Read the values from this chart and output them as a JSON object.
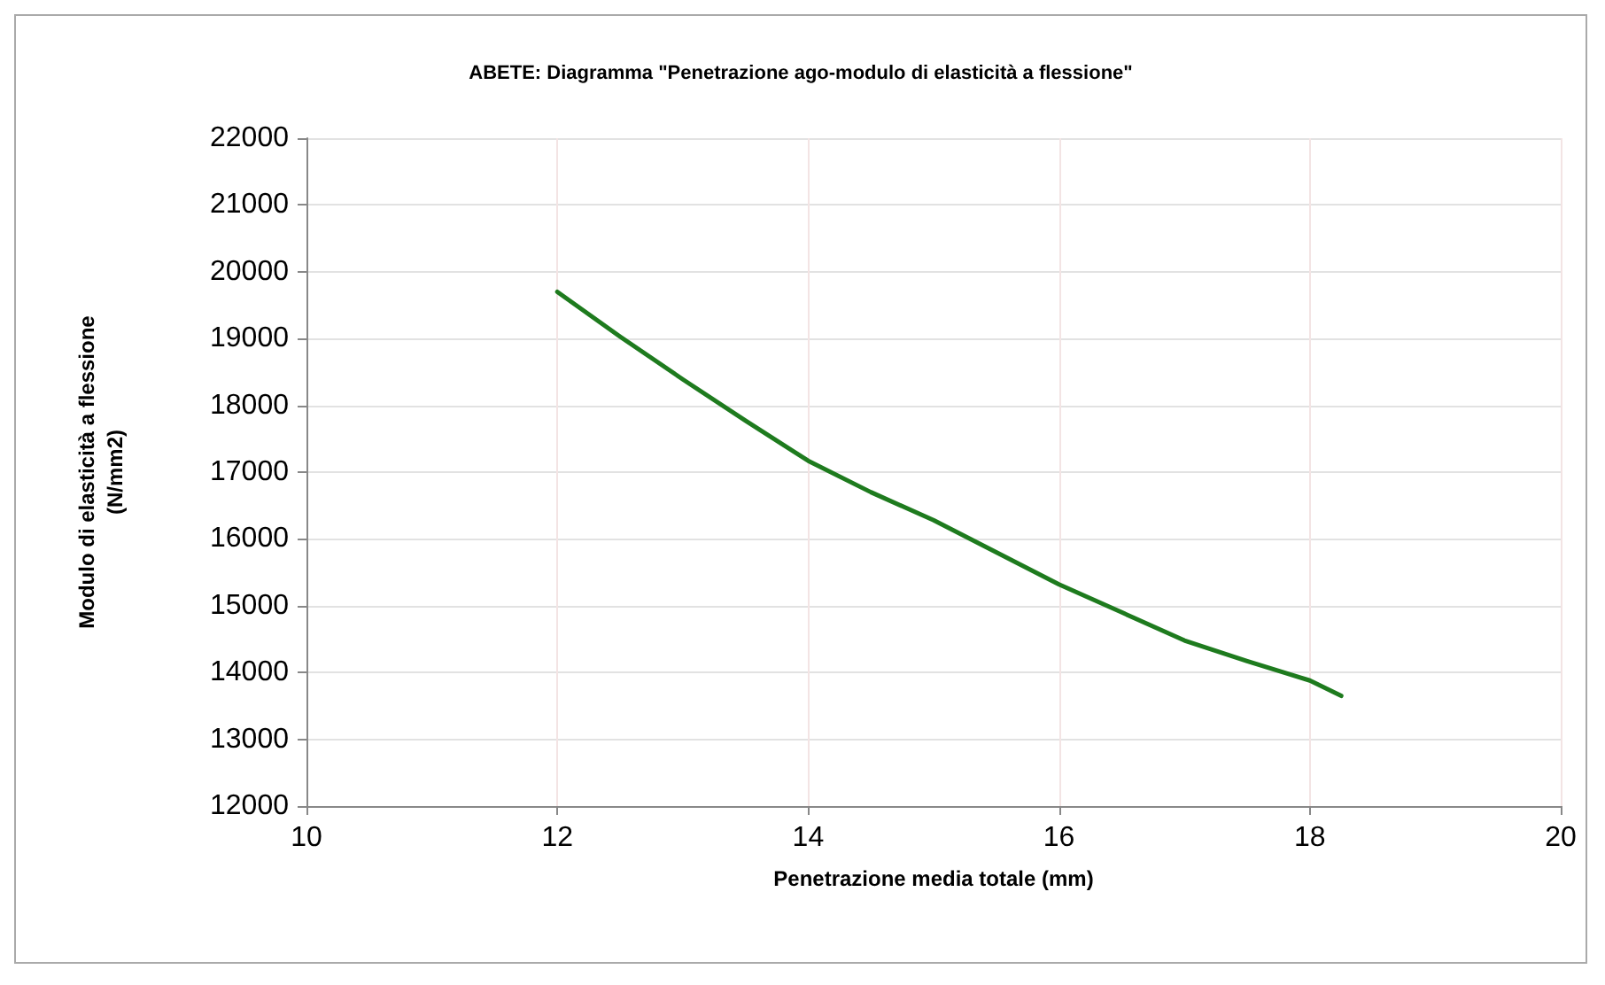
{
  "chart_data": {
    "type": "line",
    "title": "ABETE: Diagramma \"Penetrazione ago-modulo di elasticità a flessione\"",
    "xlabel": "Penetrazione media totale (mm)",
    "ylabel": "Modulo di elasticità a flessione\n(N/mm2)",
    "x": [
      12,
      12.5,
      13,
      13.5,
      14,
      14.5,
      15,
      15.5,
      16,
      16.5,
      17,
      17.5,
      18,
      18.25
    ],
    "series": [
      {
        "color": "#1e7b1e",
        "values": [
          19700,
          19030,
          18390,
          17770,
          17170,
          16700,
          16280,
          15800,
          15320,
          14900,
          14480,
          14170,
          13880,
          13650
        ]
      }
    ],
    "xlim": [
      10,
      20
    ],
    "xticks": [
      10,
      12,
      14,
      16,
      18,
      20
    ],
    "ylim": [
      12000,
      22000
    ],
    "yticks": [
      12000,
      13000,
      14000,
      15000,
      16000,
      17000,
      18000,
      19000,
      20000,
      21000,
      22000
    ],
    "grid": true,
    "marker": "none",
    "line_style": "solid"
  }
}
